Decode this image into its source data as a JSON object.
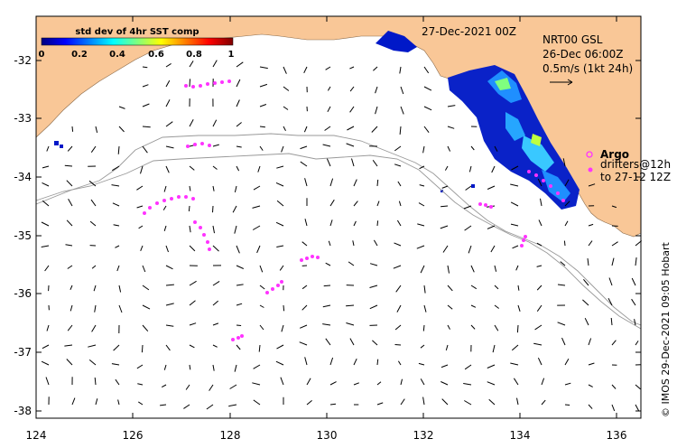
{
  "date_label": "27-Dec-2021 00Z",
  "colorbar": {
    "title": "std dev of 4hr SST comp",
    "ticks": [
      "0",
      "0.2",
      "0.4",
      "0.6",
      "0.8",
      "1"
    ],
    "stops": [
      "#00007f",
      "#0000ff",
      "#007fff",
      "#00ffff",
      "#7fff7f",
      "#ffff00",
      "#ff7f00",
      "#ff0000",
      "#7f0000"
    ]
  },
  "current_info": {
    "lines": [
      "NRT00 GSL",
      "26-Dec 06:00Z",
      "0.5m/s (1kt 24h)"
    ]
  },
  "legend": {
    "argo_label": "Argo",
    "drifter_label": "drifters@12h",
    "drifter_to": "to 27-12 12Z"
  },
  "axes": {
    "x_ticks": [
      "124",
      "126",
      "128",
      "130",
      "132",
      "134",
      "136"
    ],
    "y_ticks": [
      "-32",
      "-33",
      "-34",
      "-35",
      "-36",
      "-37",
      "-38"
    ],
    "lon_range": [
      124,
      136.5
    ],
    "lat_range": [
      -38.1,
      -31.3
    ]
  },
  "credit": "© IMOS 29-Dec-2021 09:05 Hobart",
  "colors": {
    "land": "#f9c797",
    "drifter": "#ff33ff",
    "contour": "#999999"
  }
}
